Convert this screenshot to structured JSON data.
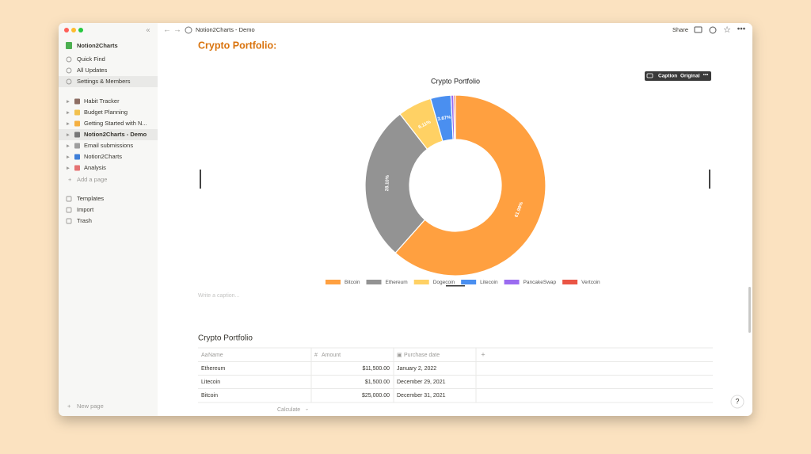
{
  "window": {
    "breadcrumb": "Notion2Charts - Demo",
    "share": "Share"
  },
  "sidebar": {
    "workspace": "Notion2Charts",
    "items": [
      "Quick Find",
      "All Updates",
      "Settings & Members"
    ],
    "pages": [
      "Habit Tracker",
      "Budget Planning",
      "Getting Started with N...",
      "Notion2Charts - Demo",
      "Email submissions",
      "Notion2Charts",
      "Analysis"
    ],
    "add_page": "Add a page",
    "bottom": [
      "Templates",
      "Import",
      "Trash"
    ],
    "new_page": "New page"
  },
  "page": {
    "heading": "Crypto Portfolio:",
    "caption_placeholder": "Write a caption...",
    "chart_buttons": [
      "Caption",
      "Original"
    ]
  },
  "chart_data": {
    "type": "pie",
    "title": "Crypto Portfolio",
    "categories": [
      "Bitcoin",
      "Ethereum",
      "Dogecoin",
      "Litecoin",
      "PancakeSwap",
      "Vertcoin"
    ],
    "values": [
      61.98,
      28.1,
      6.11,
      3.67,
      0.5,
      0.3
    ],
    "value_labels": [
      "61.98%",
      "28.10%",
      "6.11%",
      "3.67%",
      null,
      null
    ],
    "colors": [
      "#ffa040",
      "#939393",
      "#ffd164",
      "#4a8ff0",
      "#9b6cf0",
      "#ea5545"
    ],
    "donut": true
  },
  "table": {
    "title": "Crypto Portfolio",
    "columns": [
      "Name",
      "Amount",
      "Purchase date"
    ],
    "rows": [
      [
        "Ethereum",
        "$11,500.00",
        "January 2, 2022"
      ],
      [
        "Litecoin",
        "$1,500.00",
        "December 29, 2021"
      ],
      [
        "Bitcoin",
        "$25,000.00",
        "December 31, 2021"
      ]
    ],
    "calculate": "Calculate"
  }
}
